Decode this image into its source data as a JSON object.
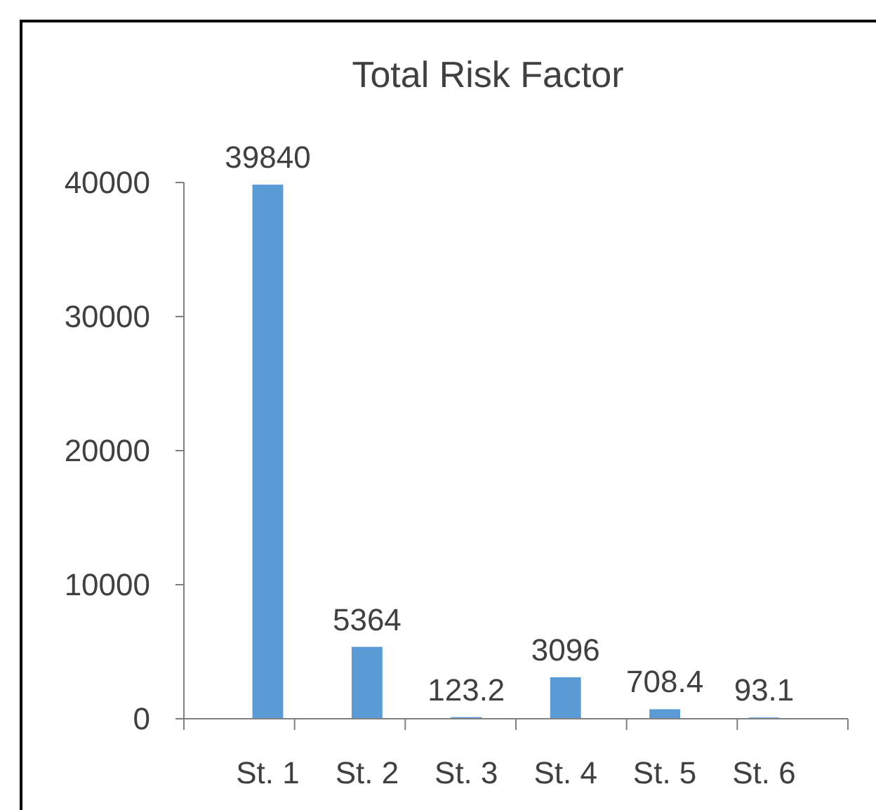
{
  "chart_data": {
    "type": "bar",
    "title": "Total Risk Factor",
    "categories": [
      "St. 1",
      "St. 2",
      "St. 3",
      "St. 4",
      "St. 5",
      "St. 6"
    ],
    "values": [
      39840,
      5364,
      123.2,
      3096,
      708.4,
      93.1
    ],
    "color": "#5b9bd5",
    "ylim": [
      0,
      40000
    ],
    "yticks": [
      0,
      10000,
      20000,
      30000,
      40000
    ],
    "grid": false,
    "data_labels": true
  }
}
